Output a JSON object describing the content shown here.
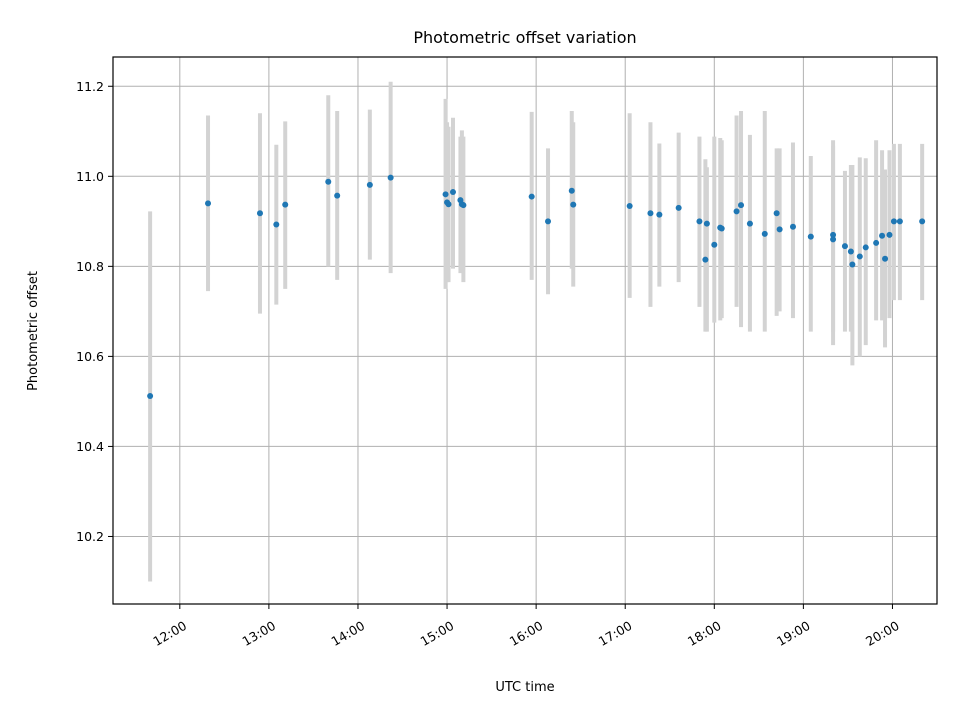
{
  "chart_data": {
    "type": "scatter",
    "title": "Photometric offset variation",
    "xlabel": "UTC time",
    "ylabel": "Photometric offset",
    "x_ticks": [
      "12:00",
      "13:00",
      "14:00",
      "15:00",
      "16:00",
      "17:00",
      "18:00",
      "19:00",
      "20:00"
    ],
    "y_ticks": [
      "10.2",
      "10.4",
      "10.6",
      "10.8",
      "11.0",
      "11.2"
    ],
    "xlim": [
      "11:15",
      "20:30"
    ],
    "ylim": [
      10.05,
      11.265
    ],
    "grid": true,
    "point_color": "#1f77b4",
    "errorbar_color": "#d3d3d3",
    "series": [
      {
        "x": [
          "11:40",
          "12:19",
          "12:54",
          "13:05",
          "13:11",
          "13:40",
          "13:46",
          "14:08",
          "14:22",
          "14:59",
          "15:00",
          "15:01",
          "15:04",
          "15:09",
          "15:10",
          "15:11",
          "15:57",
          "16:08",
          "16:24",
          "16:25",
          "17:03",
          "17:17",
          "17:23",
          "17:36",
          "17:50",
          "17:54",
          "17:55",
          "18:00",
          "18:04",
          "18:05",
          "18:15",
          "18:18",
          "18:24",
          "18:34",
          "18:42",
          "18:44",
          "18:53",
          "19:05",
          "19:20",
          "19:20",
          "19:28",
          "19:32",
          "19:33",
          "19:38",
          "19:42",
          "19:49",
          "19:53",
          "19:55",
          "19:58",
          "20:01",
          "20:05",
          "20:20"
        ],
        "y": [
          10.512,
          10.94,
          10.918,
          10.893,
          10.937,
          10.988,
          10.957,
          10.981,
          10.997,
          10.96,
          10.942,
          10.938,
          10.965,
          10.947,
          10.938,
          10.936,
          10.955,
          10.9,
          10.968,
          10.937,
          10.934,
          10.918,
          10.915,
          10.93,
          10.9,
          10.815,
          10.895,
          10.848,
          10.886,
          10.884,
          10.922,
          10.936,
          10.895,
          10.872,
          10.918,
          10.882,
          10.888,
          10.866,
          10.86,
          10.87,
          10.845,
          10.833,
          10.804,
          10.822,
          10.842,
          10.852,
          10.868,
          10.817,
          10.87,
          10.9,
          10.9,
          10.9
        ],
        "yerr_low": [
          10.1,
          10.745,
          10.695,
          10.715,
          10.75,
          10.8,
          10.77,
          10.815,
          10.785,
          10.75,
          10.765,
          10.765,
          10.795,
          10.785,
          10.79,
          10.765,
          10.77,
          10.738,
          10.795,
          10.755,
          10.73,
          10.71,
          10.755,
          10.765,
          10.71,
          10.655,
          10.655,
          10.675,
          10.68,
          10.685,
          10.71,
          10.665,
          10.655,
          10.655,
          10.69,
          10.7,
          10.685,
          10.655,
          10.655,
          10.625,
          10.655,
          10.655,
          10.58,
          10.6,
          10.625,
          10.68,
          10.68,
          10.62,
          10.685,
          10.725,
          10.725,
          10.725
        ],
        "yerr_high": [
          10.922,
          11.135,
          11.14,
          11.07,
          11.122,
          11.18,
          11.145,
          11.148,
          11.21,
          11.172,
          11.12,
          11.11,
          11.13,
          11.088,
          11.102,
          11.088,
          11.143,
          11.062,
          11.145,
          11.12,
          11.14,
          11.12,
          11.073,
          11.097,
          11.088,
          11.038,
          11.02,
          11.088,
          11.085,
          11.08,
          11.135,
          11.145,
          11.092,
          11.145,
          11.062,
          11.062,
          11.075,
          11.045,
          11.068,
          11.08,
          11.012,
          11.025,
          11.025,
          11.042,
          11.04,
          11.08,
          11.058,
          11.015,
          11.058,
          11.072,
          11.072,
          11.072
        ]
      }
    ]
  }
}
